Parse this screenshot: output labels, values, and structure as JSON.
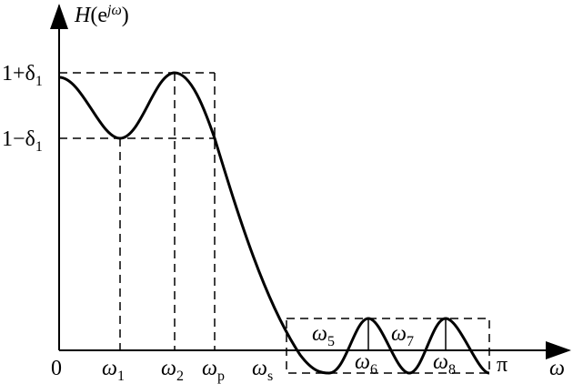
{
  "y_axis_label": {
    "name": "H",
    "open": "(e",
    "sup": "jω",
    "close": ")"
  },
  "y_labels": [
    {
      "main": "1+δ",
      "sub": "1"
    },
    {
      "main": "1−δ",
      "sub": "1"
    }
  ],
  "x_labels": [
    {
      "main": "0"
    },
    {
      "main": "ω",
      "sub": "1"
    },
    {
      "main": "ω",
      "sub": "2"
    },
    {
      "main": "ω",
      "sub": "p"
    },
    {
      "main": "ω",
      "sub": "s"
    },
    {
      "main": "ω",
      "sub": "6"
    },
    {
      "main": "ω",
      "sub": "8"
    },
    {
      "main": "π"
    }
  ],
  "inner_labels": [
    {
      "main": "ω",
      "sub": "5"
    },
    {
      "main": "ω",
      "sub": "7"
    }
  ],
  "x_axis_label": "ω"
}
